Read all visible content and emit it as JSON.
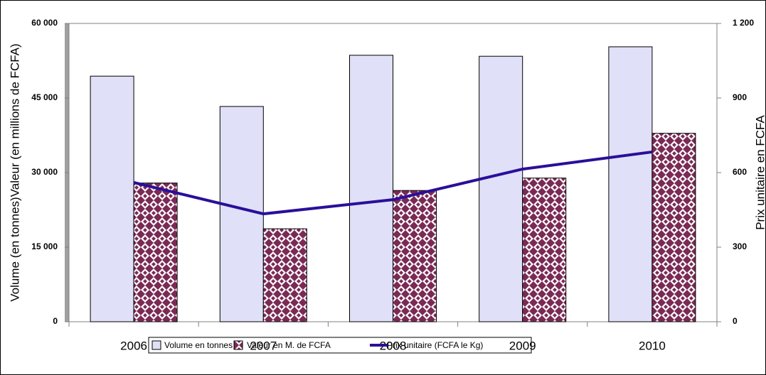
{
  "chart_data": {
    "type": "bar_line",
    "y_label": "Volume (en tonnes)Valeur (en millions de FCFA)",
    "y2_label": "Prix unitaire en FCFA",
    "categories": [
      "2006",
      "2007",
      "2008",
      "2009",
      "2010"
    ],
    "series": [
      {
        "name": "Volume en tonnes",
        "type": "bar",
        "color": "#e0e0f8",
        "values": [
          49400,
          43300,
          53600,
          53400,
          55300
        ]
      },
      {
        "name": "Valeur en M. de FCFA",
        "type": "bar",
        "color": "#7a2a55",
        "values": [
          27900,
          18700,
          26400,
          28900,
          37900
        ]
      },
      {
        "name": "Prix unitaire (FCFA le Kg)",
        "type": "line",
        "axis": "y2",
        "color": "#2a0f99",
        "values": [
          560,
          434,
          491,
          614,
          683
        ]
      }
    ],
    "ylim": [
      0,
      60000
    ],
    "yticks": [
      {
        "value": 0,
        "label": "0"
      },
      {
        "value": 15000,
        "label": "15 000"
      },
      {
        "value": 30000,
        "label": "30 000"
      },
      {
        "value": 45000,
        "label": "45 000"
      },
      {
        "value": 60000,
        "label": "60 000"
      }
    ],
    "y2lim": [
      0,
      1200
    ],
    "y2ticks": [
      0,
      300,
      600,
      900,
      {
        "value": 1200,
        "label": "1 200"
      }
    ],
    "grid": false
  }
}
